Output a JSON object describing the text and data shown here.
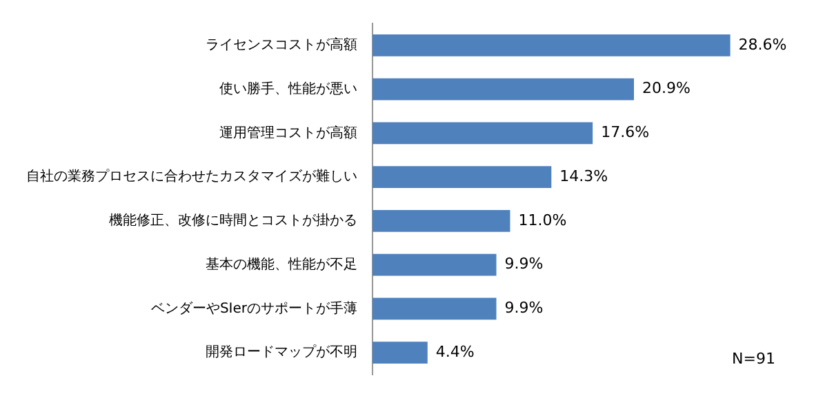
{
  "chart_data": {
    "type": "bar",
    "orientation": "horizontal",
    "categories": [
      "ライセンスコストが高額",
      "使い勝手、性能が悪い",
      "運用管理コストが高額",
      "自社の業務プロセスに合わせたカスタマイズが難しい",
      "機能修正、改修に時間とコストが掛かる",
      "基本の機能、性能が不足",
      "ベンダーやSIerのサポートが手薄",
      "開発ロードマップが不明"
    ],
    "values": [
      28.6,
      20.9,
      17.6,
      14.3,
      11.0,
      9.9,
      9.9,
      4.4
    ],
    "value_labels": [
      "28.6%",
      "20.9%",
      "17.6%",
      "14.3%",
      "11.0%",
      "9.9%",
      "9.9%",
      "4.4%"
    ],
    "color": "#4f81bd",
    "annotations": [
      "N=91"
    ]
  }
}
